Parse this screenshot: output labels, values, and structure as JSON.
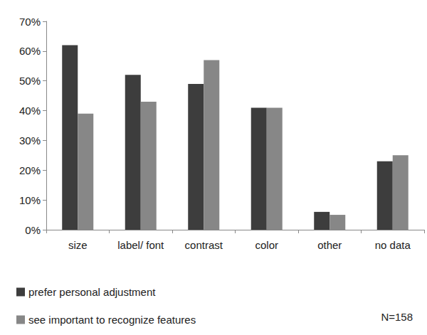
{
  "chart_data": {
    "type": "bar",
    "categories": [
      "size",
      "label/ font",
      "contrast",
      "color",
      "other",
      "no data"
    ],
    "series": [
      {
        "name": "prefer personal adjustment",
        "color": "#3d3d3d",
        "values": [
          62,
          52,
          49,
          41,
          6,
          23
        ]
      },
      {
        "name": "see important to recognize features",
        "color": "#878787",
        "values": [
          39,
          43,
          57,
          41,
          5,
          25
        ]
      }
    ],
    "ylim": [
      0,
      70
    ],
    "yticks": [
      {
        "value": 0,
        "label": "0%"
      },
      {
        "value": 10,
        "label": "10%"
      },
      {
        "value": 20,
        "label": "20%"
      },
      {
        "value": 30,
        "label": "30%"
      },
      {
        "value": 40,
        "label": "40%"
      },
      {
        "value": 50,
        "label": "50%"
      },
      {
        "value": 60,
        "label": "60%"
      },
      {
        "value": 70,
        "label": "70%"
      }
    ],
    "grid": false,
    "legend": "bottom-left",
    "annotation": "N=158"
  }
}
